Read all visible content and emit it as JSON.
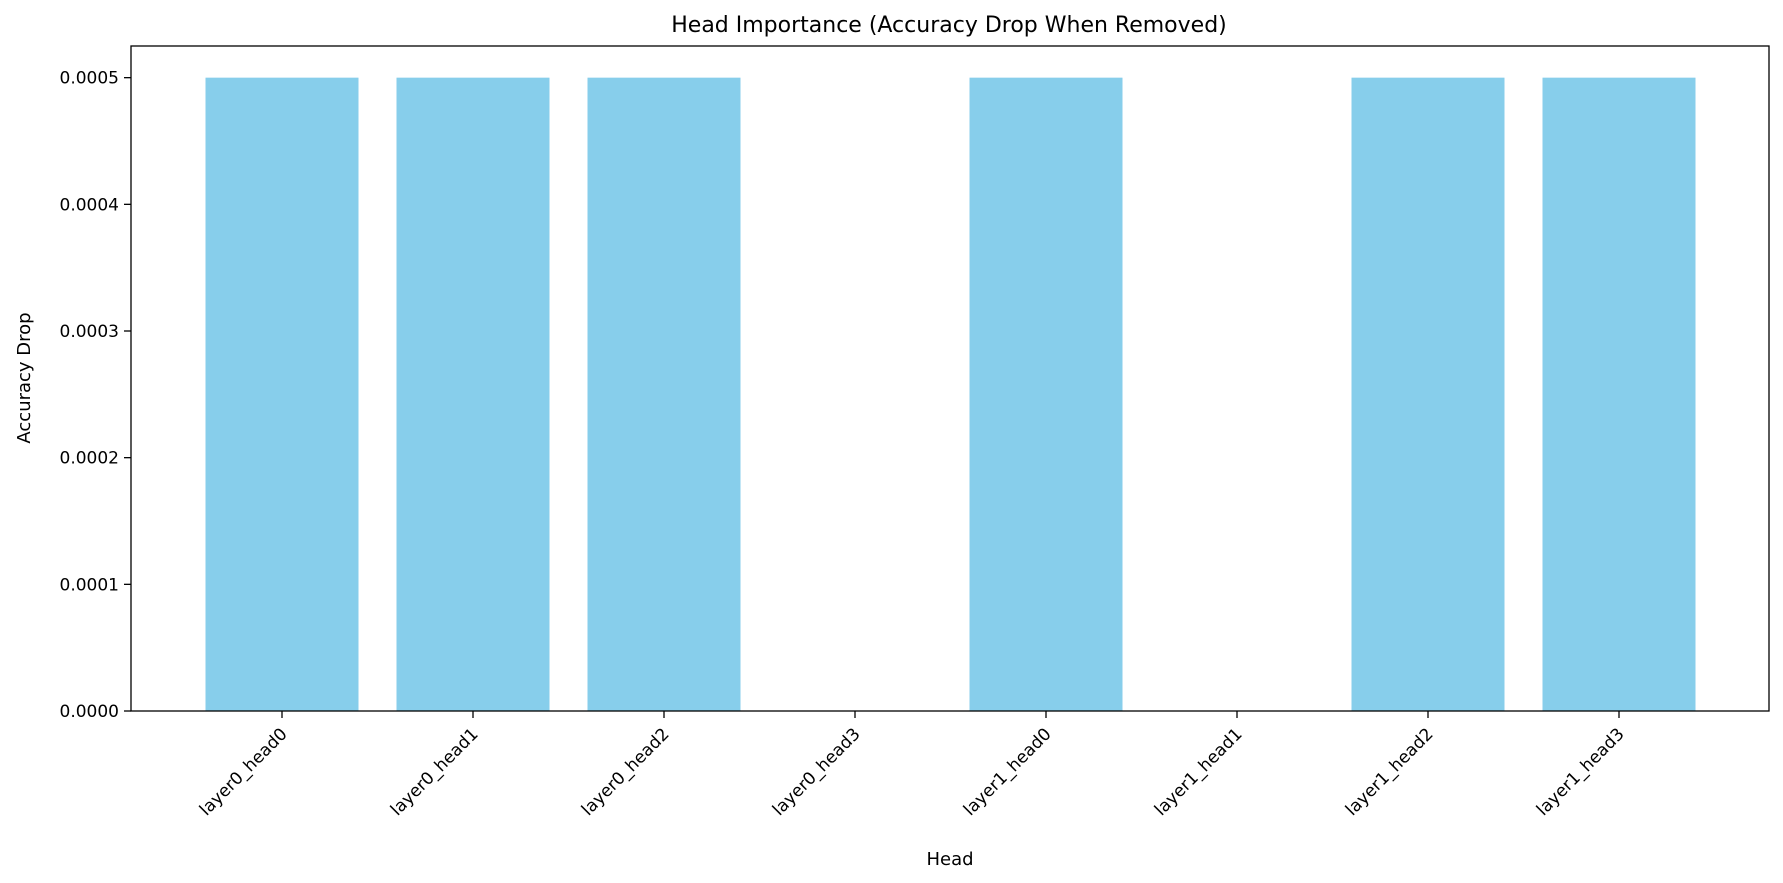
{
  "chart_data": {
    "type": "bar",
    "title": "Head Importance (Accuracy Drop When Removed)",
    "xlabel": "Head",
    "ylabel": "Accuracy Drop",
    "categories": [
      "layer0_head0",
      "layer0_head1",
      "layer0_head2",
      "layer0_head3",
      "layer1_head0",
      "layer1_head1",
      "layer1_head2",
      "layer1_head3"
    ],
    "values": [
      0.0005,
      0.0005,
      0.0005,
      0.0,
      0.0005,
      0.0,
      0.0005,
      0.0005
    ],
    "ylim": [
      0,
      0.000525
    ],
    "yticks": [
      "0.0000",
      "0.0001",
      "0.0002",
      "0.0003",
      "0.0004",
      "0.0005"
    ],
    "bar_color": "#87ceeb",
    "grid": false,
    "legend": "none"
  }
}
